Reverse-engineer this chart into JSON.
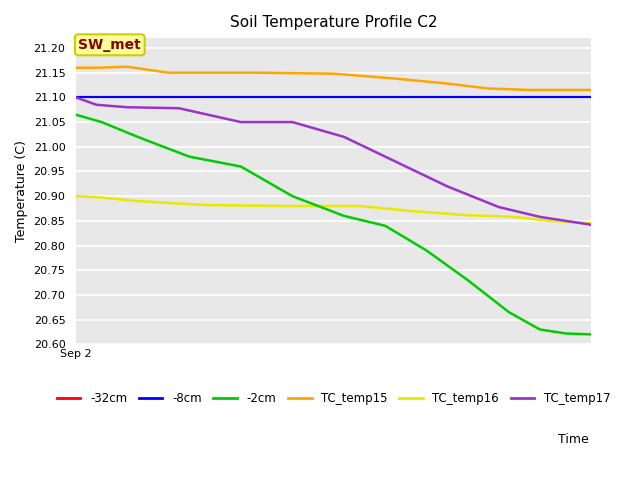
{
  "title": "Soil Temperature Profile C2",
  "xlabel": "Time",
  "ylabel": "Temperature (C)",
  "ylim": [
    20.6,
    21.22
  ],
  "annotation_text": "SW_met",
  "annotation_box_facecolor": "#ffff99",
  "annotation_box_edgecolor": "#cccc00",
  "annotation_text_color": "#880000",
  "plot_bg_color": "#e8e8e8",
  "fig_bg_color": "#ffffff",
  "xtick_label": "Sep 2",
  "yticks": [
    20.6,
    20.65,
    20.7,
    20.75,
    20.8,
    20.85,
    20.9,
    20.95,
    21.0,
    21.05,
    21.1,
    21.15,
    21.2
  ],
  "series": {
    "TC_temp15": {
      "color": "#FFA500",
      "x": [
        0.0,
        0.04,
        0.1,
        0.18,
        0.35,
        0.5,
        0.62,
        0.72,
        0.8,
        0.88,
        1.0
      ],
      "y": [
        21.16,
        21.16,
        21.162,
        21.15,
        21.15,
        21.148,
        21.138,
        21.128,
        21.118,
        21.115,
        21.115
      ]
    },
    "TC_temp16": {
      "color": "#e8e800",
      "x": [
        0.0,
        0.04,
        0.12,
        0.25,
        0.4,
        0.55,
        0.65,
        0.75,
        0.85,
        0.92,
        1.0
      ],
      "y": [
        20.9,
        20.898,
        20.89,
        20.882,
        20.88,
        20.88,
        20.87,
        20.862,
        20.858,
        20.85,
        20.845
      ]
    },
    "TC_temp17": {
      "color": "#9933cc",
      "x": [
        0.0,
        0.04,
        0.1,
        0.2,
        0.32,
        0.42,
        0.52,
        0.62,
        0.72,
        0.82,
        0.9,
        1.0
      ],
      "y": [
        21.1,
        21.085,
        21.08,
        21.078,
        21.05,
        21.05,
        21.02,
        20.97,
        20.92,
        20.878,
        20.858,
        20.842
      ]
    },
    "-2cm": {
      "color": "#00cc00",
      "x": [
        0.0,
        0.05,
        0.12,
        0.22,
        0.32,
        0.42,
        0.52,
        0.6,
        0.68,
        0.76,
        0.84,
        0.9,
        0.95,
        1.0
      ],
      "y": [
        21.065,
        21.05,
        21.02,
        20.98,
        20.96,
        20.9,
        20.86,
        20.84,
        20.79,
        20.73,
        20.665,
        20.63,
        20.622,
        20.62
      ]
    },
    "-8cm": {
      "color": "#0000ff",
      "x": [
        0.0,
        1.0
      ],
      "y": [
        21.1,
        21.1
      ]
    },
    "-32cm": {
      "color": "#ff0000",
      "x": [
        0.0,
        1.0
      ],
      "y": [
        21.1,
        21.1
      ]
    }
  },
  "legend_order": [
    "-32cm",
    "-8cm",
    "-2cm",
    "TC_temp15",
    "TC_temp16",
    "TC_temp17"
  ]
}
